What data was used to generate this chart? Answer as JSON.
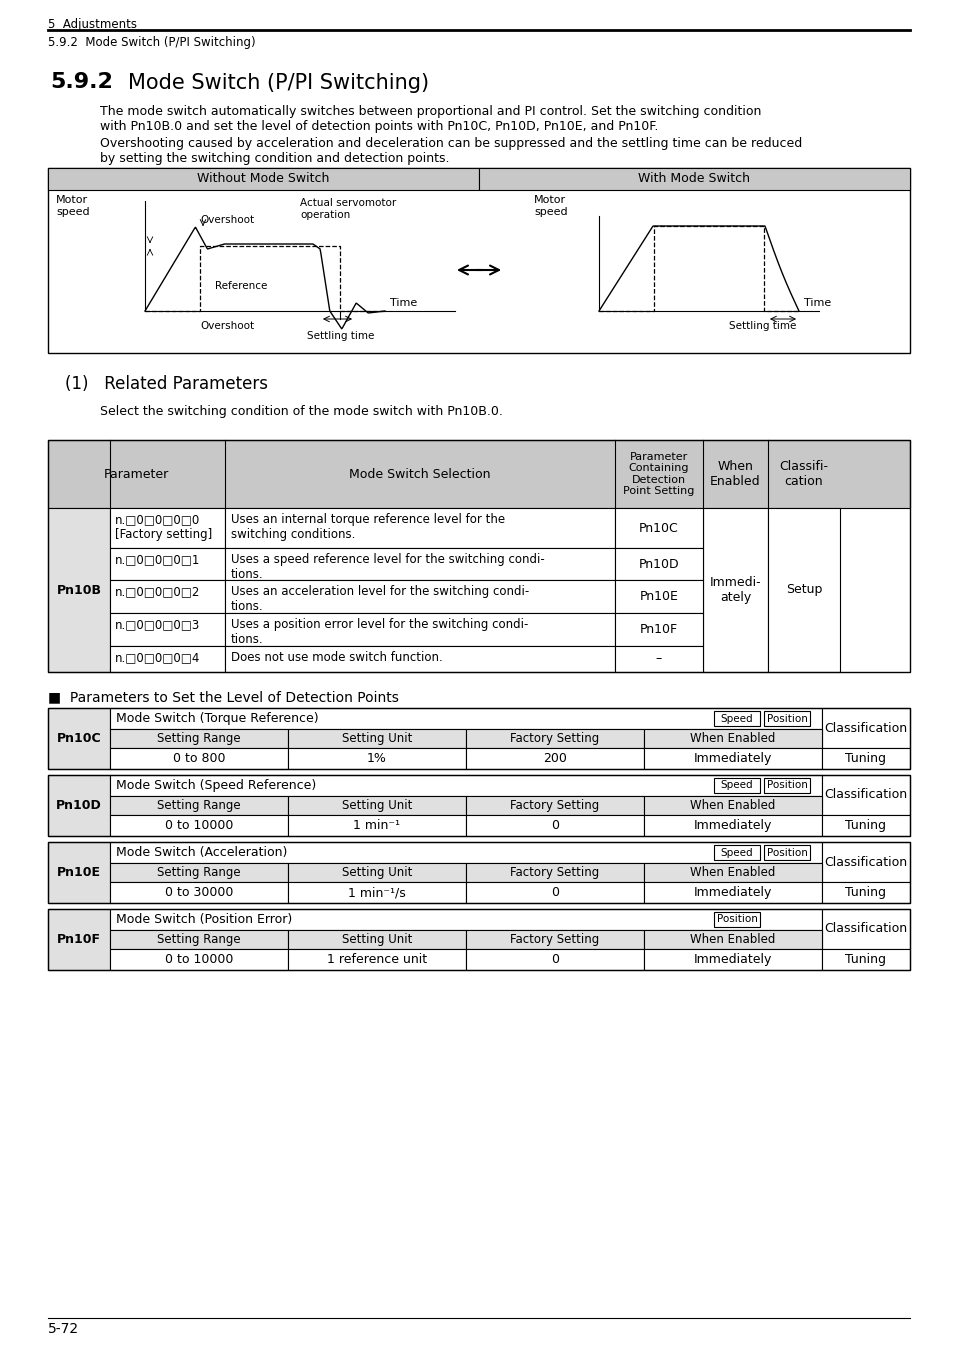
{
  "bg_color": "#ffffff",
  "header_line1": "5  Adjustments",
  "header_line2": "5.9.2  Mode Switch (P/PI Switching)",
  "section_num": "5.9.2",
  "section_title": "Mode Switch (P/PI Switching)",
  "para1": "The mode switch automatically switches between proportional and PI control. Set the switching condition\nwith Pn10B.0 and set the level of detection points with Pn10C, Pn10D, Pn10E, and Pn10F.",
  "para2": "Overshooting caused by acceleration and deceleration can be suppressed and the settling time can be reduced\nby setting the switching condition and detection points.",
  "diagram_header_left": "Without Mode Switch",
  "diagram_header_right": "With Mode Switch",
  "related_params_title": "(1)   Related Parameters",
  "related_params_desc": "Select the switching condition of the mode switch with Pn10B.0.",
  "detection_title": "■  Parameters to Set the Level of Detection Points",
  "pn10c_title": "Mode Switch (Torque Reference)",
  "pn10c_tags": [
    "Speed",
    "Position"
  ],
  "pn10c_class": "Classification",
  "pn10c_label": "Pn10C",
  "pn10c_headers": [
    "Setting Range",
    "Setting Unit",
    "Factory Setting",
    "When Enabled"
  ],
  "pn10c_values": [
    "0 to 800",
    "1%",
    "200",
    "Immediately"
  ],
  "pn10c_right": "Tuning",
  "pn10d_title": "Mode Switch (Speed Reference)",
  "pn10d_tags": [
    "Speed",
    "Position"
  ],
  "pn10d_class": "Classification",
  "pn10d_label": "Pn10D",
  "pn10d_headers": [
    "Setting Range",
    "Setting Unit",
    "Factory Setting",
    "When Enabled"
  ],
  "pn10d_values": [
    "0 to 10000",
    "1 min⁻¹",
    "0",
    "Immediately"
  ],
  "pn10d_right": "Tuning",
  "pn10e_title": "Mode Switch (Acceleration)",
  "pn10e_tags": [
    "Speed",
    "Position"
  ],
  "pn10e_class": "Classification",
  "pn10e_label": "Pn10E",
  "pn10e_headers": [
    "Setting Range",
    "Setting Unit",
    "Factory Setting",
    "When Enabled"
  ],
  "pn10e_values": [
    "0 to 30000",
    "1 min⁻¹/s",
    "0",
    "Immediately"
  ],
  "pn10e_right": "Tuning",
  "pn10f_title": "Mode Switch (Position Error)",
  "pn10f_tags": [
    "Position"
  ],
  "pn10f_class": "Classification",
  "pn10f_label": "Pn10F",
  "pn10f_headers": [
    "Setting Range",
    "Setting Unit",
    "Factory Setting",
    "When Enabled"
  ],
  "pn10f_values": [
    "0 to 10000",
    "1 reference unit",
    "0",
    "Immediately"
  ],
  "pn10f_right": "Tuning",
  "footer": "5-72",
  "gray_color": "#c8c8c8",
  "light_gray": "#e0e0e0",
  "white": "#ffffff"
}
